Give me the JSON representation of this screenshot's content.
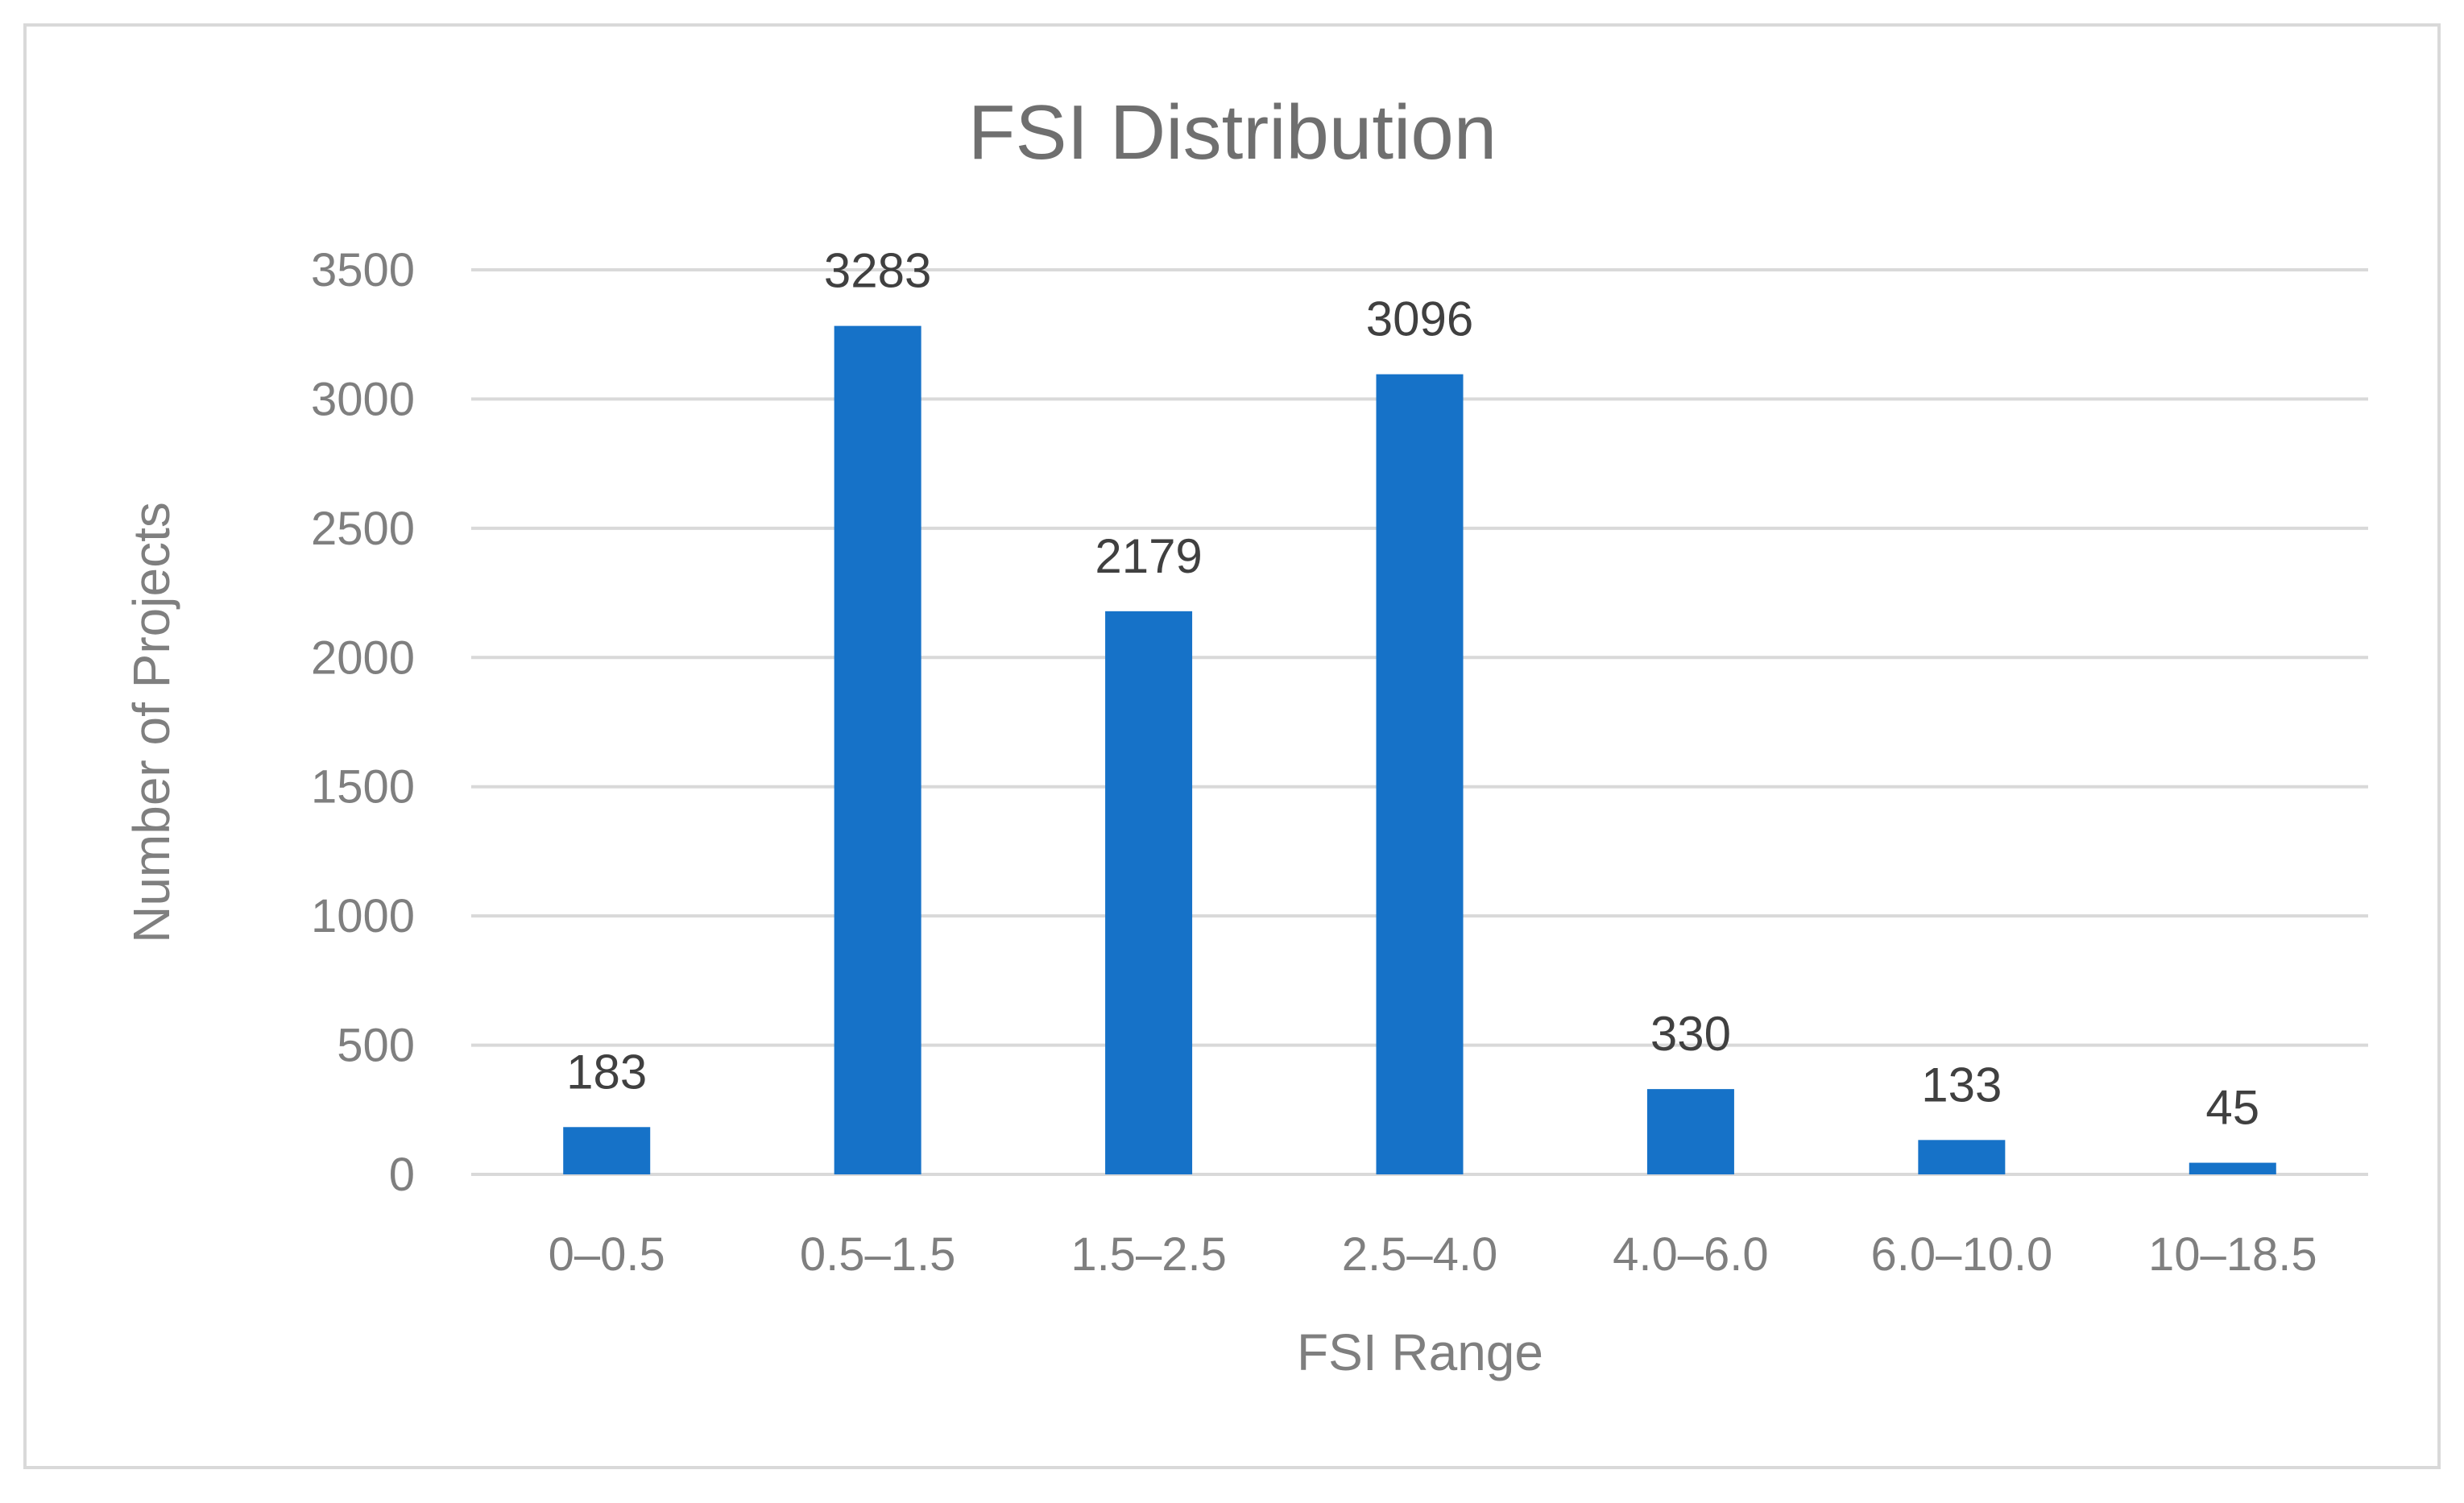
{
  "chart_data": {
    "type": "bar",
    "title": "FSI Distribution",
    "xlabel": "FSI Range",
    "ylabel": "Number of Projects",
    "categories": [
      "0–0.5",
      "0.5–1.5",
      "1.5–2.5",
      "2.5–4.0",
      "4.0–6.0",
      "6.0–10.0",
      "10–18.5"
    ],
    "values": [
      183,
      3283,
      2179,
      3096,
      330,
      133,
      45
    ],
    "data_labels": [
      "183",
      "3283",
      "2179",
      "3096",
      "330",
      "133",
      "45"
    ],
    "ylim": [
      0,
      3500
    ],
    "yticks": [
      0,
      500,
      1000,
      1500,
      2000,
      2500,
      3000,
      3500
    ],
    "ytick_labels": [
      "0",
      "500",
      "1000",
      "1500",
      "2000",
      "2500",
      "3000",
      "3500"
    ],
    "grid": true,
    "legend": "none",
    "colors": {
      "bar": "#1672c8",
      "grid": "#d9d9d9"
    }
  }
}
